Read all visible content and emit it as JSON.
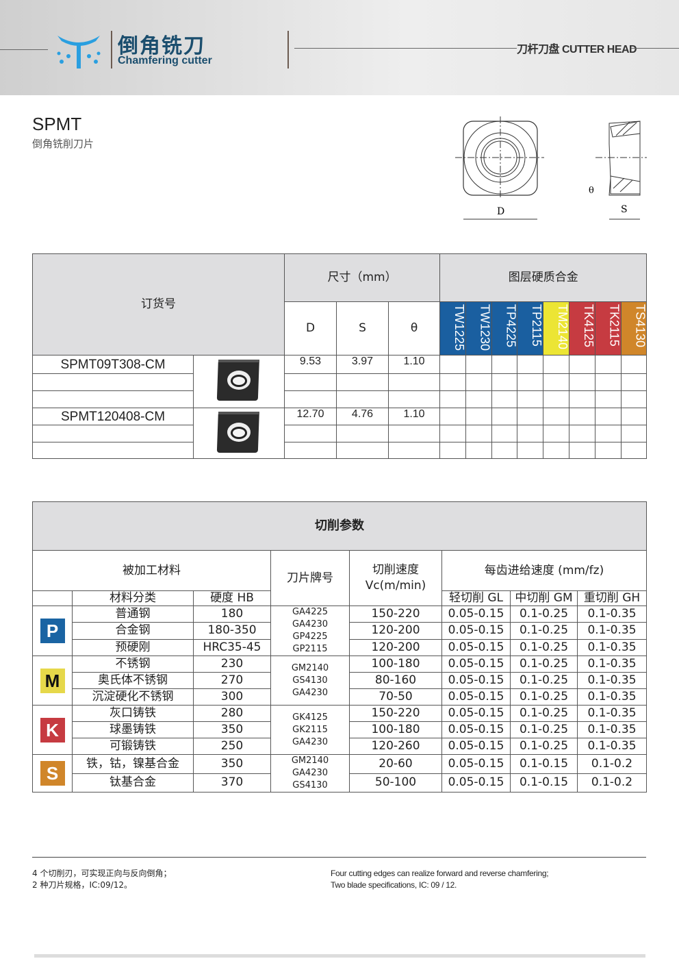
{
  "header": {
    "brand_cn": "倒角铣刀",
    "brand_en": "Chamfering cutter",
    "section": "刀杆刀盘 CUTTER HEAD"
  },
  "product": {
    "title": "SPMT",
    "subtitle": "倒角铣削刀片",
    "drawing_labels": {
      "d": "D",
      "s": "S",
      "theta": "θ"
    }
  },
  "spec_table": {
    "order_no_header": "订货号",
    "dim_header": "尺寸（mm）",
    "dim_cols": [
      "D",
      "S",
      "θ"
    ],
    "grade_header": "图层硬质合金",
    "grades": [
      {
        "name": "TW1225",
        "color": "#1a5fa0"
      },
      {
        "name": "TW1230",
        "color": "#1a5fa0"
      },
      {
        "name": "TP4225",
        "color": "#1a5fa0"
      },
      {
        "name": "TP2115",
        "color": "#1a5fa0"
      },
      {
        "name": "TM2140",
        "color": "#ece534"
      },
      {
        "name": "TK4125",
        "color": "#c63b41"
      },
      {
        "name": "TK2115",
        "color": "#c63b41"
      },
      {
        "name": "TS4130",
        "color": "#d0862a"
      }
    ],
    "rows": [
      {
        "order_no": "SPMT09T308-CM",
        "D": "9.53",
        "S": "3.97",
        "theta": "1.10"
      },
      {
        "order_no": "SPMT120408-CM",
        "D": "12.70",
        "S": "4.76",
        "theta": "1.10"
      }
    ]
  },
  "cutting": {
    "title": "切削参数",
    "material_header": "被加工材料",
    "grade_header": "刀片牌号",
    "speed_header": "切削速度",
    "speed_unit": "Vc(m/min)",
    "feed_header": "每齿进给速度 (mm/fz)",
    "sub_headers": {
      "category": "材料分类",
      "hardness": "硬度 HB",
      "gl": "轻切削 GL",
      "gm": "中切削 GM",
      "gh": "重切削 GH"
    },
    "groups": [
      {
        "badge": "P",
        "color": "#1a64a3",
        "grades": [
          "GA4225",
          "GA4230",
          "GP4225",
          "GP2115"
        ],
        "rows": [
          [
            "普通钢",
            "180",
            "150-220",
            "0.05-0.15",
            "0.1-0.25",
            "0.1-0.35"
          ],
          [
            "合金钢",
            "180-350",
            "120-200",
            "0.05-0.15",
            "0.1-0.25",
            "0.1-0.35"
          ],
          [
            "预硬刚",
            "HRC35-45",
            "120-200",
            "0.05-0.15",
            "0.1-0.25",
            "0.1-0.35"
          ]
        ]
      },
      {
        "badge": "M",
        "color": "#e6d84a",
        "grades": [
          "GM2140",
          "GS4130",
          "GA4230"
        ],
        "rows": [
          [
            "不锈钢",
            "230",
            "100-180",
            "0.05-0.15",
            "0.1-0.25",
            "0.1-0.35"
          ],
          [
            "奥氏体不锈钢",
            "270",
            "80-160",
            "0.05-0.15",
            "0.1-0.25",
            "0.1-0.35"
          ],
          [
            "沉淀硬化不锈钢",
            "300",
            "70-50",
            "0.05-0.15",
            "0.1-0.25",
            "0.1-0.35"
          ]
        ]
      },
      {
        "badge": "K",
        "color": "#c63b41",
        "grades": [
          "GK4125",
          "GK2115",
          "GA4230"
        ],
        "rows": [
          [
            "灰口铸铁",
            "280",
            "150-220",
            "0.05-0.15",
            "0.1-0.25",
            "0.1-0.35"
          ],
          [
            "球墨铸铁",
            "350",
            "100-180",
            "0.05-0.15",
            "0.1-0.25",
            "0.1-0.35"
          ],
          [
            "可锻铸铁",
            "250",
            "120-260",
            "0.05-0.15",
            "0.1-0.25",
            "0.1-0.35"
          ]
        ]
      },
      {
        "badge": "S",
        "color": "#d0862a",
        "grades": [
          "GM2140",
          "GA4230",
          "GS4130"
        ],
        "rows": [
          [
            "铁，钴，镍基合金",
            "350",
            "20-60",
            "0.05-0.15",
            "0.1-0.15",
            "0.1-0.2"
          ],
          [
            "钛基合金",
            "370",
            "50-100",
            "0.05-0.15",
            "0.1-0.15",
            "0.1-0.2"
          ]
        ]
      }
    ]
  },
  "footer": {
    "cn": [
      "4 个切削刃，可实现正向与反向倒角；",
      "2 种刀片规格，IC:09/12。"
    ],
    "en": [
      "Four cutting edges can realize forward and reverse chamfering;",
      "Two blade specifications, IC: 09 / 12."
    ]
  }
}
